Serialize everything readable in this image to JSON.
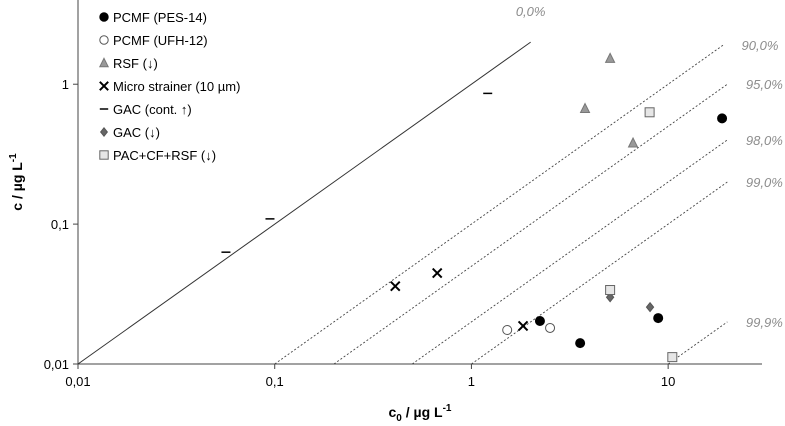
{
  "chart_data": {
    "type": "scatter",
    "log_x": true,
    "log_y": true,
    "grid": false,
    "xlabel": [
      "c",
      "0",
      " / µg L",
      "-1"
    ],
    "ylabel": [
      "c / µg L",
      "-1"
    ],
    "xlim": [
      0.01,
      30
    ],
    "ylim": [
      0.01,
      4
    ],
    "xticks": [
      {
        "value": 0.01,
        "label": "0,01"
      },
      {
        "value": 0.1,
        "label": "0,1"
      },
      1,
      10
    ],
    "yticks": [
      {
        "value": 0.01,
        "label": "0,01"
      },
      {
        "value": 0.1,
        "label": "0,1"
      },
      1
    ],
    "legend": "upper left",
    "reference_lines": [
      {
        "label": "0,0%",
        "x": [
          0.01,
          2
        ],
        "y": [
          0.01,
          2
        ]
      },
      {
        "label": "90,0%",
        "x": [
          0.1,
          19
        ],
        "y": [
          0.01,
          1.9
        ]
      },
      {
        "label": "95,0%",
        "x": [
          0.2,
          20
        ],
        "y": [
          0.01,
          1
        ]
      },
      {
        "label": "98,0%",
        "x": [
          0.5,
          20
        ],
        "y": [
          0.01,
          0.4
        ]
      },
      {
        "label": "99,0%",
        "x": [
          1,
          20
        ],
        "y": [
          0.01,
          0.2
        ]
      },
      {
        "label": "99,9%",
        "x": [
          10,
          20
        ],
        "y": [
          0.01,
          0.02
        ]
      }
    ],
    "series": [
      {
        "name": "PCMF (PES-14)",
        "marker": "circle",
        "color": "#000000",
        "edge": "#000000",
        "x": [
          18.8,
          2.23,
          3.57,
          8.9
        ],
        "values": [
          0.57,
          0.0203,
          0.0141,
          0.0213
        ]
      },
      {
        "name": "PCMF (UFH-12)",
        "marker": "circle",
        "color": "#ffffff",
        "edge": "#555555",
        "x": [
          1.52,
          2.51
        ],
        "values": [
          0.0175,
          0.0181
        ]
      },
      {
        "name": "RSF (↓)",
        "marker": "triangle",
        "color": "#999999",
        "edge": "#777777",
        "x": [
          5.07,
          3.78,
          6.63
        ],
        "values": [
          1.53,
          0.67,
          0.38
        ]
      },
      {
        "name": "Micro strainer (10 µm)",
        "marker": "x",
        "color": "#000000",
        "edge": "#000000",
        "x": [
          0.41,
          0.67,
          1.83
        ],
        "values": [
          0.036,
          0.0447,
          0.0187
        ]
      },
      {
        "name": "GAC (cont. ↑)",
        "marker": "dash",
        "color": "#000000",
        "edge": "#000000",
        "x": [
          0.0565,
          0.0946,
          1.21
        ],
        "values": [
          0.063,
          0.109,
          0.86
        ]
      },
      {
        "name": "GAC (↓)",
        "marker": "diamond",
        "color": "#666666",
        "edge": "#555555",
        "x": [
          5.07,
          8.09
        ],
        "values": [
          0.03,
          0.0255
        ]
      },
      {
        "name": "PAC+CF+RSF (↓)",
        "marker": "square",
        "color": "#e6e6e6",
        "edge": "#666666",
        "x": [
          8.05,
          5.07,
          10.5
        ],
        "values": [
          0.63,
          0.0338,
          0.0112
        ]
      }
    ]
  }
}
